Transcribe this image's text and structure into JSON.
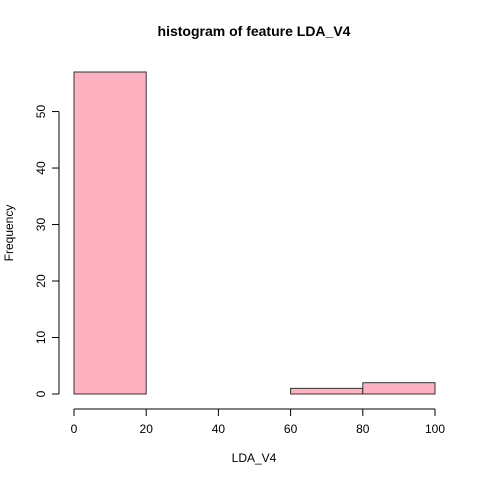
{
  "chart_data": {
    "type": "bar",
    "title": "histogram of feature LDA_V4",
    "xlabel": "LDA_V4",
    "ylabel": "Frequency",
    "bins": [
      [
        0,
        20
      ],
      [
        20,
        40
      ],
      [
        40,
        60
      ],
      [
        60,
        80
      ],
      [
        80,
        100
      ]
    ],
    "values": [
      57,
      0,
      0,
      1,
      2
    ],
    "xlim": [
      0,
      100
    ],
    "ylim": [
      0,
      57
    ],
    "xticks": [
      0,
      20,
      40,
      60,
      80,
      100
    ],
    "yticks": [
      0,
      10,
      20,
      30,
      40,
      50
    ],
    "bar_color": "#ffb0c1",
    "bar_edge_color": "#333333",
    "grid": false,
    "legend": "none"
  }
}
